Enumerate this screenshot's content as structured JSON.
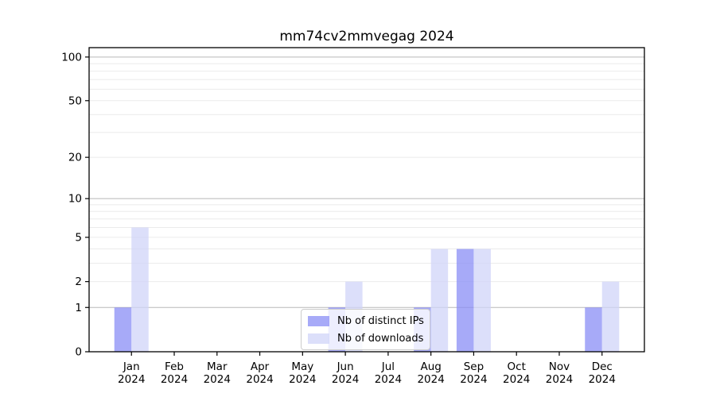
{
  "chart_data": {
    "type": "bar",
    "title": "mm74cv2mmvegag 2024",
    "year_label": "2024",
    "categories": [
      "Jan",
      "Feb",
      "Mar",
      "Apr",
      "May",
      "Jun",
      "Jul",
      "Aug",
      "Sep",
      "Oct",
      "Nov",
      "Dec"
    ],
    "series": [
      {
        "name": "Nb of distinct IPs",
        "color": "#8a8ef6",
        "values": [
          1,
          0,
          0,
          0,
          0,
          1,
          0,
          1,
          4,
          0,
          0,
          1
        ]
      },
      {
        "name": "Nb of downloads",
        "color": "#d0d4f8",
        "values": [
          6,
          0,
          0,
          0,
          0,
          2,
          0,
          4,
          4,
          0,
          0,
          2
        ]
      }
    ],
    "bar_opacity": 0.75,
    "yscale": "log1p",
    "ylim": [
      0,
      116
    ],
    "yticks": [
      0,
      1,
      2,
      5,
      10,
      20,
      50,
      100
    ],
    "gridlines": {
      "major": [
        1,
        10,
        100
      ],
      "minor": [
        2,
        3,
        4,
        5,
        6,
        7,
        8,
        9,
        20,
        30,
        40,
        50,
        60,
        70,
        80,
        90
      ]
    },
    "grid_major_color": "#b8b8b8",
    "grid_minor_color": "#ebebeb",
    "axis_color": "#000000",
    "xlabel": "",
    "ylabel": "",
    "legend_position": "lower center",
    "grid": "horizontal"
  }
}
